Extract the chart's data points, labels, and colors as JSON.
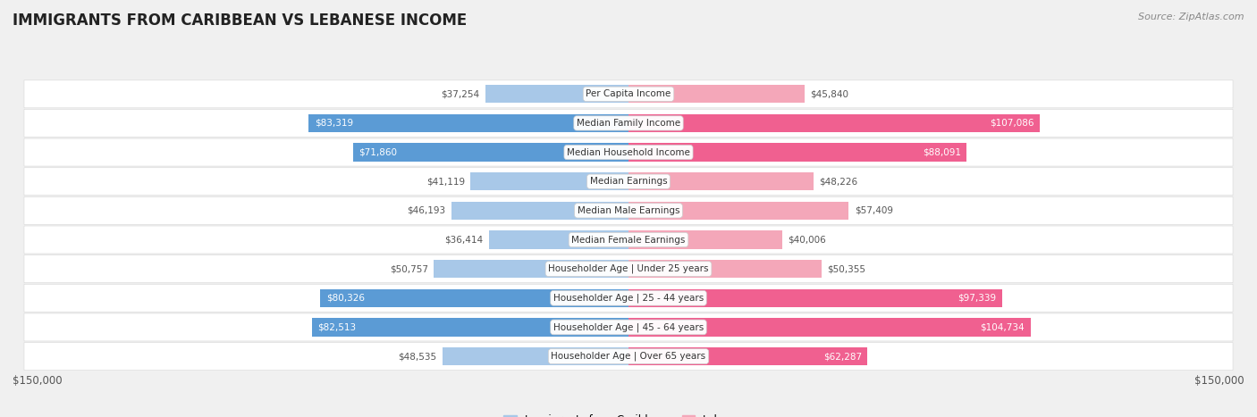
{
  "title": "IMMIGRANTS FROM CARIBBEAN VS LEBANESE INCOME",
  "source": "Source: ZipAtlas.com",
  "categories": [
    "Per Capita Income",
    "Median Family Income",
    "Median Household Income",
    "Median Earnings",
    "Median Male Earnings",
    "Median Female Earnings",
    "Householder Age | Under 25 years",
    "Householder Age | 25 - 44 years",
    "Householder Age | 45 - 64 years",
    "Householder Age | Over 65 years"
  ],
  "caribbean_values": [
    37254,
    83319,
    71860,
    41119,
    46193,
    36414,
    50757,
    80326,
    82513,
    48535
  ],
  "lebanese_values": [
    45840,
    107086,
    88091,
    48226,
    57409,
    40006,
    50355,
    97339,
    104734,
    62287
  ],
  "max_value": 150000,
  "caribbean_color_light": "#a8c8e8",
  "caribbean_color_dark": "#5b9bd5",
  "lebanese_color_light": "#f4a7b9",
  "lebanese_color_dark": "#f06090",
  "background_color": "#f0f0f0",
  "legend_caribbean": "Immigrants from Caribbean",
  "legend_lebanese": "Lebanese",
  "label_left": "$150,000",
  "label_right": "$150,000"
}
